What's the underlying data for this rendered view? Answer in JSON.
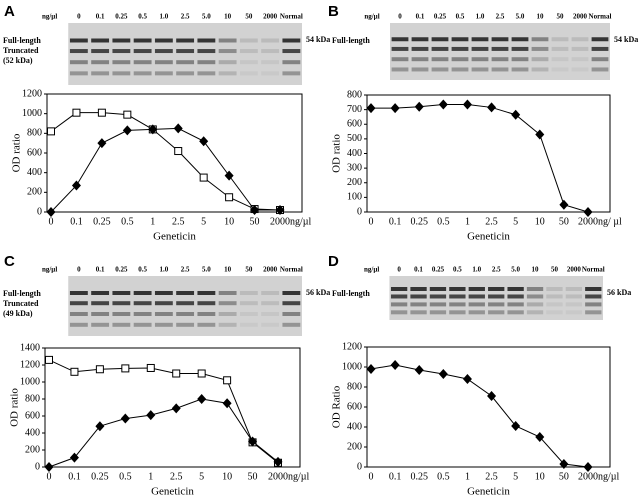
{
  "panels": [
    {
      "label": "A",
      "lanes": [
        "ng/µl",
        "0",
        "0.1",
        "0.25",
        "0.5",
        "1.0",
        "2.5",
        "5.0",
        "10",
        "50",
        "2000",
        "Normal"
      ],
      "left_labels": [
        "Full-length",
        "Truncated",
        "(52 kDa)"
      ],
      "right_label": "54 kDa"
    },
    {
      "label": "B",
      "lanes": [
        "ng/µl",
        "0",
        "0.1",
        "0.25",
        "0.5",
        "1.0",
        "2.5",
        "5.0",
        "10",
        "50",
        "2000",
        "Normal"
      ],
      "left_labels": [
        "Full-length"
      ],
      "right_label": "54 kDa"
    },
    {
      "label": "C",
      "lanes": [
        "ng/µl",
        "0",
        "0.1",
        "0.25",
        "0.5",
        "1.0",
        "2.5",
        "5.0",
        "10",
        "50",
        "2000",
        "Normal"
      ],
      "left_labels": [
        "Full-length",
        "Truncated",
        "(49 kDa)"
      ],
      "right_label": "56 kDa"
    },
    {
      "label": "D",
      "lanes": [
        "ng/µl",
        "0",
        "0.1",
        "0.25",
        "0.5",
        "1.0",
        "2.5",
        "5.0",
        "10",
        "50",
        "2000",
        "Normal"
      ],
      "left_labels": [
        "Full-length"
      ],
      "right_label": "56 kDa"
    }
  ],
  "chart_data": [
    {
      "type": "line",
      "xlabel": "Geneticin",
      "x_unit": "ng/µl",
      "ylabel": "OD ratio",
      "categories": [
        "0",
        "0.1",
        "0.25",
        "0.5",
        "1",
        "2.5",
        "5",
        "10",
        "50",
        "2000"
      ],
      "ylim": [
        0,
        1200
      ],
      "yticks": [
        0,
        200,
        400,
        600,
        800,
        1000,
        1200
      ],
      "series": [
        {
          "marker": "square-open",
          "color": "#000000",
          "values": [
            820,
            1010,
            1010,
            990,
            840,
            620,
            350,
            150,
            30,
            20
          ]
        },
        {
          "marker": "diamond",
          "color": "#000000",
          "values": [
            0,
            270,
            700,
            830,
            840,
            850,
            720,
            370,
            20,
            20
          ]
        }
      ]
    },
    {
      "type": "line",
      "xlabel": "Geneticin",
      "x_unit": "ng/ µl",
      "ylabel": "OD ratio",
      "categories": [
        "0",
        "0.1",
        "0.25",
        "0.5",
        "1",
        "2.5",
        "5",
        "10",
        "50",
        "2000"
      ],
      "ylim": [
        0,
        800
      ],
      "yticks": [
        0,
        100,
        200,
        300,
        400,
        500,
        600,
        700,
        800
      ],
      "series": [
        {
          "marker": "diamond",
          "color": "#000000",
          "values": [
            710,
            710,
            720,
            735,
            735,
            715,
            665,
            530,
            50,
            0
          ]
        }
      ]
    },
    {
      "type": "line",
      "xlabel": "Geneticin",
      "x_unit": "ng/µl",
      "ylabel": "OD ratio",
      "categories": [
        "0",
        "0.1",
        "0.25",
        "0.5",
        "1",
        "2.5",
        "5",
        "10",
        "50",
        "2000"
      ],
      "ylim": [
        0,
        1400
      ],
      "yticks": [
        0,
        200,
        400,
        600,
        800,
        1000,
        1200,
        1400
      ],
      "series": [
        {
          "marker": "square-open",
          "color": "#000000",
          "values": [
            1260,
            1120,
            1150,
            1160,
            1165,
            1100,
            1100,
            1020,
            290,
            50
          ]
        },
        {
          "marker": "diamond",
          "color": "#000000",
          "values": [
            0,
            110,
            480,
            570,
            610,
            690,
            800,
            750,
            300,
            60
          ]
        }
      ]
    },
    {
      "type": "line",
      "xlabel": "Geneticin",
      "x_unit": "ng/µl",
      "ylabel": "OD Ratio",
      "categories": [
        "0",
        "0.1",
        "0.25",
        "0.5",
        "1",
        "2.5",
        "5",
        "10",
        "50",
        "2000"
      ],
      "ylim": [
        0,
        1200
      ],
      "yticks": [
        0,
        200,
        400,
        600,
        800,
        1000,
        1200
      ],
      "series": [
        {
          "marker": "diamond",
          "color": "#000000",
          "values": [
            980,
            1020,
            970,
            930,
            880,
            710,
            410,
            300,
            30,
            0
          ]
        }
      ]
    }
  ]
}
